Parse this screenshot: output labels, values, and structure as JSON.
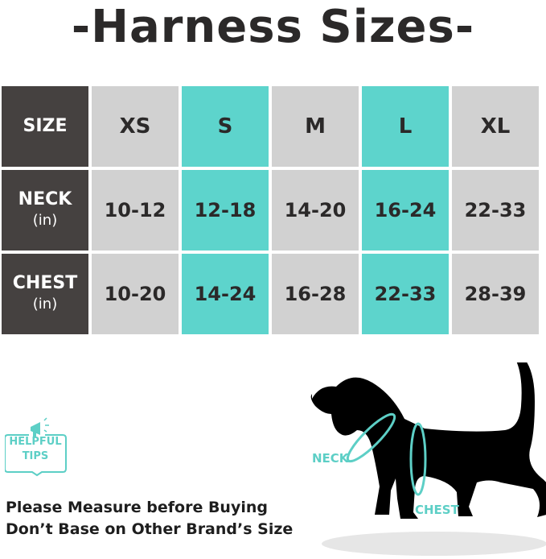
{
  "title": "-Harness Sizes-",
  "table": {
    "corner": "SIZE",
    "sizes": [
      "XS",
      "S",
      "M",
      "L",
      "XL"
    ],
    "rows": [
      {
        "label": "NECK",
        "unit": "(in)",
        "values": [
          "10-12",
          "12-18",
          "14-20",
          "16-24",
          "22-33"
        ]
      },
      {
        "label": "CHEST",
        "unit": "(in)",
        "values": [
          "10-20",
          "14-24",
          "16-28",
          "22-33",
          "28-39"
        ]
      }
    ]
  },
  "tips": {
    "line1": "HELPFUL",
    "line2": "TIPS"
  },
  "note": {
    "line1": "Please Measure before Buying",
    "line2": "Don’t Base on Other Brand’s Size"
  },
  "diagram": {
    "neck_label": "NECK",
    "chest_label": "CHEST"
  },
  "colors": {
    "dark": "#454140",
    "gray": "#d1d1d1",
    "teal": "#5dd4cc"
  }
}
